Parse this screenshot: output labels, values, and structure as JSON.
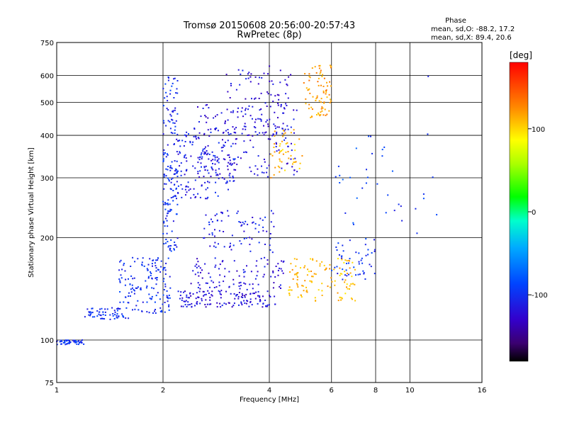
{
  "chart_data": {
    "type": "scatter",
    "title": "Tromsø 20150608 20:56:00-20:57:43",
    "subtitle": "RwPretec (8p)",
    "xlabel": "Frequency [MHz]",
    "ylabel": "Stationary phase Virtual Height [km]",
    "x_scale": "log",
    "y_scale": "log",
    "xlim": [
      1,
      16
    ],
    "ylim": [
      75,
      750
    ],
    "x_ticks": [
      "1",
      "2",
      "4",
      "6",
      "8",
      "10",
      "16"
    ],
    "y_ticks": [
      "75",
      "100",
      "200",
      "300",
      "400",
      "500",
      "600",
      "750"
    ],
    "grid": true,
    "stats": {
      "heading": "Phase",
      "o_line": "mean, sd,O: -88.2, 17.2",
      "x_line": "mean, sd,X: 89.4, 20.6"
    },
    "colorbar": {
      "label": "[deg]",
      "range": [
        -180,
        180
      ],
      "ticks": [
        "100",
        "0",
        "-100"
      ],
      "tick_values": [
        100,
        0,
        -100
      ]
    },
    "clusters": [
      {
        "x": [
          1.0,
          1.2
        ],
        "y": [
          97,
          100
        ],
        "phase": -100,
        "n": 50
      },
      {
        "x": [
          1.2,
          1.6
        ],
        "y": [
          115,
          125
        ],
        "phase": -100,
        "n": 60
      },
      {
        "x": [
          1.5,
          2.1
        ],
        "y": [
          120,
          175
        ],
        "phase": -100,
        "n": 150
      },
      {
        "x": [
          2.0,
          2.2
        ],
        "y": [
          180,
          600
        ],
        "phase": -100,
        "n": 150
      },
      {
        "x": [
          2.1,
          3.2
        ],
        "y": [
          260,
          420
        ],
        "phase": -110,
        "n": 180
      },
      {
        "x": [
          2.5,
          4.8
        ],
        "y": [
          300,
          500
        ],
        "phase": -120,
        "n": 160
      },
      {
        "x": [
          3.0,
          4.6
        ],
        "y": [
          400,
          640
        ],
        "phase": -120,
        "n": 100
      },
      {
        "x": [
          2.2,
          4.2
        ],
        "y": [
          125,
          140
        ],
        "phase": -120,
        "n": 140
      },
      {
        "x": [
          2.4,
          4.5
        ],
        "y": [
          140,
          175
        ],
        "phase": -120,
        "n": 100
      },
      {
        "x": [
          2.6,
          4.2
        ],
        "y": [
          180,
          240
        ],
        "phase": -110,
        "n": 80
      },
      {
        "x": [
          4.0,
          5.0
        ],
        "y": [
          300,
          420
        ],
        "phase": 110,
        "n": 50
      },
      {
        "x": [
          5.0,
          6.0
        ],
        "y": [
          450,
          650
        ],
        "phase": 120,
        "n": 80
      },
      {
        "x": [
          4.5,
          7.0
        ],
        "y": [
          130,
          175
        ],
        "phase": 110,
        "n": 120
      },
      {
        "x": [
          6.0,
          8.0
        ],
        "y": [
          150,
          200
        ],
        "phase": -100,
        "n": 50
      },
      {
        "x": [
          6.0,
          9.0
        ],
        "y": [
          210,
          400
        ],
        "phase": -90,
        "n": 25
      },
      {
        "x": [
          9.0,
          12.0
        ],
        "y": [
          170,
          600
        ],
        "phase": -100,
        "n": 12
      }
    ]
  }
}
